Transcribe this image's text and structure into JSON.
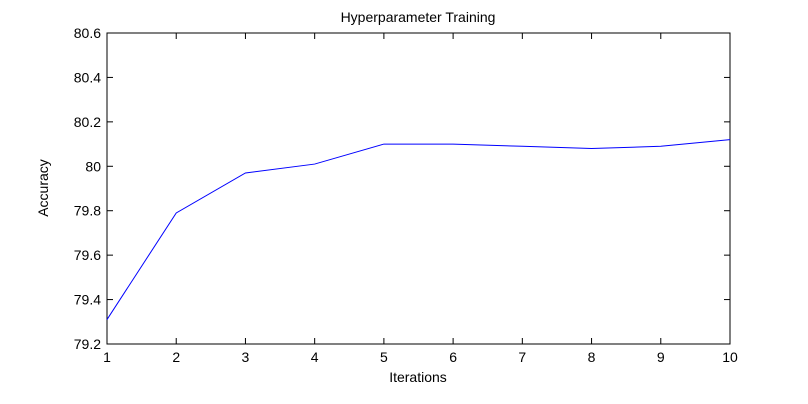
{
  "chart_data": {
    "type": "line",
    "title": "Hyperparameter Training",
    "xlabel": "Iterations",
    "ylabel": "Accuracy",
    "xlim": [
      1,
      10
    ],
    "ylim": [
      79.2,
      80.6
    ],
    "xticks": [
      1,
      2,
      3,
      4,
      5,
      6,
      7,
      8,
      9,
      10
    ],
    "yticks": [
      79.2,
      79.4,
      79.6,
      79.8,
      80,
      80.2,
      80.4,
      80.6
    ],
    "ytick_labels": [
      "79.2",
      "79.4",
      "79.6",
      "79.8",
      "80",
      "80.2",
      "80.4",
      "80.6"
    ],
    "grid": false,
    "series": [
      {
        "color": "#0000ff",
        "x": [
          1,
          2,
          3,
          4,
          5,
          6,
          7,
          8,
          9,
          10
        ],
        "y": [
          79.31,
          79.79,
          79.97,
          80.01,
          80.1,
          80.1,
          80.09,
          80.08,
          80.09,
          80.12
        ]
      }
    ]
  }
}
